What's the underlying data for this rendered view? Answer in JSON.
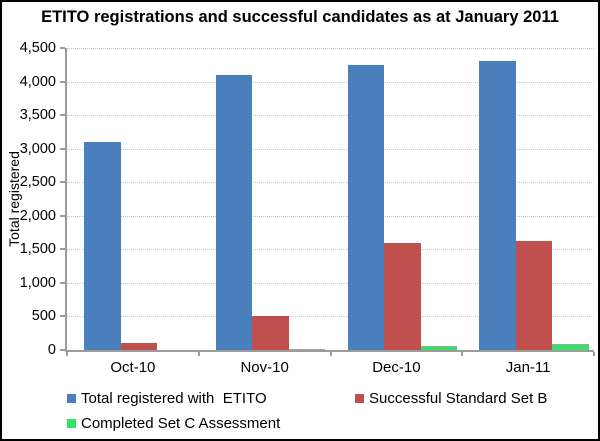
{
  "title": "ETITO registrations and successful candidates as at January 2011",
  "y_axis": {
    "label": "Total registered",
    "ticks": [
      "4,500",
      "4,000",
      "3,500",
      "3,000",
      "2,500",
      "2,000",
      "1,500",
      "1,000",
      "500",
      "0"
    ]
  },
  "x_axis": {
    "categories": [
      "Oct-10",
      "Nov-10",
      "Dec-10",
      "Jan-11"
    ]
  },
  "chart_data": {
    "type": "bar",
    "title": "ETITO registrations and successful candidates as at January 2011",
    "categories": [
      "Oct-10",
      "Nov-10",
      "Dec-10",
      "Jan-11"
    ],
    "series": [
      {
        "name": "Total registered with  ETITO",
        "color": "#4A7FBE",
        "values": [
          3100,
          4100,
          4250,
          4300
        ]
      },
      {
        "name": "Successful Standard Set B",
        "color": "#C0504D",
        "values": [
          100,
          510,
          1600,
          1620
        ]
      },
      {
        "name": "Completed Set C Assessment",
        "color": "#32E464",
        "values": [
          0,
          15,
          60,
          90
        ]
      }
    ],
    "xlabel": "",
    "ylabel": "Total registered",
    "ylim": [
      0,
      4500
    ],
    "ytick_step": 500,
    "grid": true,
    "gridline_style": "dotted",
    "legend_position": "bottom"
  },
  "colors": {
    "grid": "#C6C6C6",
    "axis": "#9C9C9C",
    "background": "#FFFFFF",
    "frame_border": "#000000",
    "text": "#000000"
  }
}
